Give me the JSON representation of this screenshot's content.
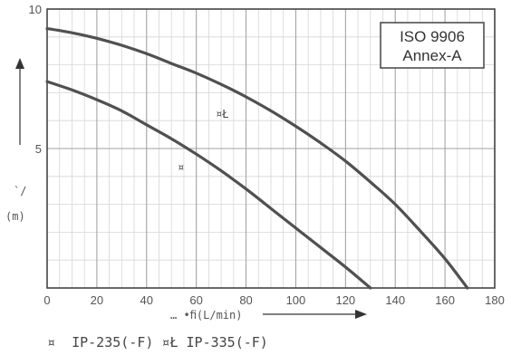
{
  "chart_data": {
    "type": "line",
    "xlim": [
      0,
      180
    ],
    "ylim": [
      0,
      10
    ],
    "x_ticks": [
      0,
      20,
      40,
      60,
      80,
      100,
      120,
      140,
      160,
      180
    ],
    "y_ticks": [
      5,
      10
    ],
    "x_ticks_labels": [
      "0",
      "20",
      "40",
      "60",
      "80",
      "100",
      "120",
      "140",
      "160",
      "180"
    ],
    "y_ticks_labels": [
      "5",
      "10"
    ],
    "x_minor_step": 5,
    "y_minor_step": 1,
    "grid": true,
    "xlabel": "… •ﬁ(L/min)",
    "ylabel_top": "`/",
    "ylabel_unit": "(m)",
    "annotation": {
      "line1": "ISO 9906",
      "line2": "Annex-A"
    },
    "series": [
      {
        "curve_label": "¤",
        "x": [
          0,
          10,
          20,
          30,
          40,
          50,
          60,
          70,
          80,
          90,
          100,
          110,
          120,
          130
        ],
        "y": [
          7.4,
          7.1,
          6.75,
          6.35,
          5.85,
          5.35,
          4.8,
          4.2,
          3.55,
          2.85,
          2.15,
          1.45,
          0.75,
          0.0
        ]
      },
      {
        "curve_label": "¤Ł",
        "x": [
          0,
          10,
          20,
          30,
          40,
          50,
          60,
          70,
          80,
          90,
          100,
          110,
          120,
          130,
          140,
          150,
          160,
          169
        ],
        "y": [
          9.3,
          9.15,
          8.95,
          8.7,
          8.4,
          8.05,
          7.7,
          7.3,
          6.85,
          6.35,
          5.8,
          5.2,
          4.55,
          3.8,
          3.0,
          2.05,
          1.05,
          0.0
        ]
      }
    ],
    "legend_text": "¤  IP-235(-F) ¤Ł IP-335(-F)"
  }
}
